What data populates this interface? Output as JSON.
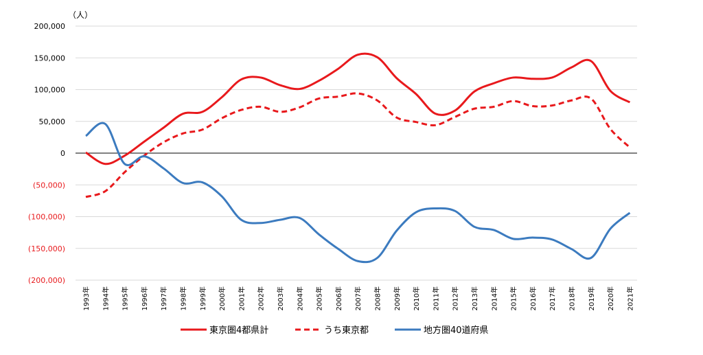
{
  "chart_data": {
    "type": "line",
    "title": "",
    "unit_label": "（人）",
    "ylim": [
      -200000,
      200000
    ],
    "y_ticks": [
      200000,
      150000,
      100000,
      50000,
      0,
      -50000,
      -100000,
      -150000,
      -200000
    ],
    "y_tick_labels": [
      "200,000",
      "150,000",
      "100,000",
      "50,000",
      "0",
      "(50,000)",
      "(100,000)",
      "(150,000)",
      "(200,000)"
    ],
    "negative_tick_color": "#e8191c",
    "positive_tick_color": "#000000",
    "grid": true,
    "legend_position": "bottom",
    "categories": [
      "1993年",
      "1994年",
      "1995年",
      "1996年",
      "1997年",
      "1998年",
      "1999年",
      "2000年",
      "2001年",
      "2002年",
      "2003年",
      "2004年",
      "2005年",
      "2006年",
      "2007年",
      "2008年",
      "2009年",
      "2010年",
      "2011年",
      "2012年",
      "2013年",
      "2014年",
      "2015年",
      "2016年",
      "2017年",
      "2018年",
      "2019年",
      "2020年",
      "2021年"
    ],
    "series": [
      {
        "name": "東京圏4都県計",
        "color": "#e8191c",
        "dash": "solid",
        "values": [
          1000,
          -17000,
          -4000,
          18000,
          40000,
          62000,
          65000,
          88000,
          116000,
          119000,
          107000,
          101000,
          114000,
          133000,
          155000,
          151000,
          118000,
          93000,
          62000,
          67000,
          97000,
          110000,
          119000,
          117000,
          119000,
          135000,
          145000,
          98000,
          80000
        ]
      },
      {
        "name": "うち東京都",
        "color": "#e8191c",
        "dash": "dashed",
        "values": [
          -69000,
          -60000,
          -30000,
          -4000,
          17000,
          31000,
          37000,
          55000,
          68000,
          73000,
          65000,
          72000,
          86000,
          89000,
          94000,
          83000,
          56000,
          49000,
          44000,
          57000,
          70000,
          73000,
          82000,
          74000,
          75000,
          83000,
          86000,
          38000,
          9000
        ]
      },
      {
        "name": "地方圏40道府県",
        "color": "#3c7bbf",
        "dash": "solid",
        "values": [
          27000,
          46000,
          -17000,
          -5000,
          -24000,
          -47000,
          -46000,
          -68000,
          -105000,
          -110000,
          -105000,
          -102000,
          -128000,
          -151000,
          -170000,
          -165000,
          -122000,
          -93000,
          -87000,
          -91000,
          -116000,
          -121000,
          -135000,
          -133000,
          -136000,
          -151000,
          -165000,
          -119000,
          -94000
        ]
      }
    ]
  }
}
